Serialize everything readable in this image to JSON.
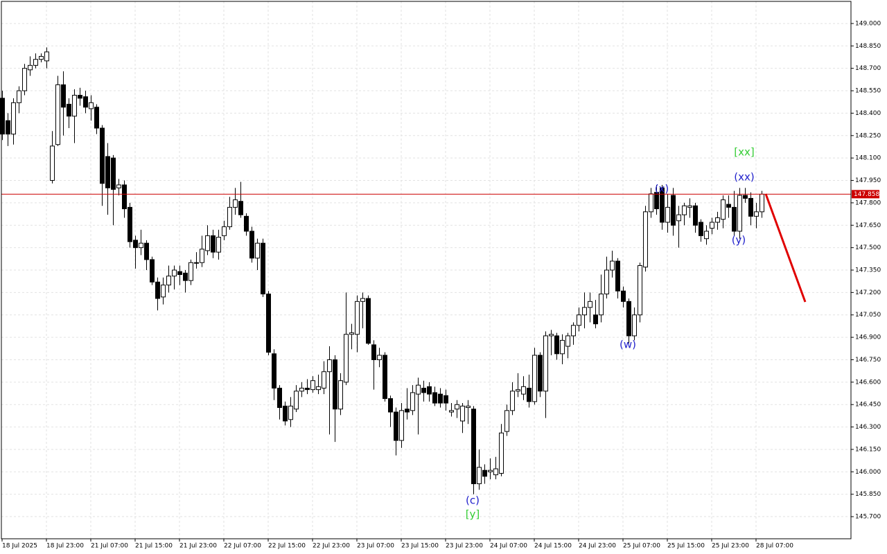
{
  "chart_data": {
    "type": "candlestick",
    "ylim": [
      145.552,
      149.148
    ],
    "yticks": [
      {
        "value": 149.0,
        "label": "149.000"
      },
      {
        "value": 148.85,
        "label": "148.850"
      },
      {
        "value": 148.7,
        "label": "148.700"
      },
      {
        "value": 148.55,
        "label": "148.550"
      },
      {
        "value": 148.4,
        "label": "148.400"
      },
      {
        "value": 148.25,
        "label": "148.250"
      },
      {
        "value": 148.1,
        "label": "148.100"
      },
      {
        "value": 147.95,
        "label": "147.950"
      },
      {
        "value": 147.8,
        "label": "147.800"
      },
      {
        "value": 147.65,
        "label": "147.650"
      },
      {
        "value": 147.5,
        "label": "147.500"
      },
      {
        "value": 147.35,
        "label": "147.350"
      },
      {
        "value": 147.2,
        "label": "147.200"
      },
      {
        "value": 147.05,
        "label": "147.050"
      },
      {
        "value": 146.9,
        "label": "146.900"
      },
      {
        "value": 146.75,
        "label": "146.750"
      },
      {
        "value": 146.6,
        "label": "146.600"
      },
      {
        "value": 146.45,
        "label": "146.450"
      },
      {
        "value": 146.3,
        "label": "146.300"
      },
      {
        "value": 146.15,
        "label": "146.150"
      },
      {
        "value": 146.0,
        "label": "146.000"
      },
      {
        "value": 145.85,
        "label": "145.850"
      },
      {
        "value": 145.7,
        "label": "145.700"
      }
    ],
    "grid": true,
    "up_color": "#ffffff",
    "down_color": "#000000",
    "wick_color": "#000000",
    "current_price": {
      "value": 147.858,
      "label": "147.858",
      "color": "#cc0000"
    },
    "categories": [
      "18 Jul 2025",
      null,
      null,
      null,
      null,
      null,
      null,
      null,
      "18 Jul 23:00",
      null,
      null,
      null,
      null,
      null,
      null,
      null,
      "21 Jul 07:00",
      null,
      null,
      null,
      null,
      null,
      null,
      null,
      "21 Jul 15:00",
      null,
      null,
      null,
      null,
      null,
      null,
      null,
      "21 Jul 23:00",
      null,
      null,
      null,
      null,
      null,
      null,
      null,
      "22 Jul 07:00",
      null,
      null,
      null,
      null,
      null,
      null,
      null,
      "22 Jul 15:00",
      null,
      null,
      null,
      null,
      null,
      null,
      null,
      "22 Jul 23:00",
      null,
      null,
      null,
      null,
      null,
      null,
      null,
      "23 Jul 07:00",
      null,
      null,
      null,
      null,
      null,
      null,
      null,
      "23 Jul 15:00",
      null,
      null,
      null,
      null,
      null,
      null,
      null,
      "23 Jul 23:00",
      null,
      null,
      null,
      null,
      null,
      null,
      null,
      "24 Jul 07:00",
      null,
      null,
      null,
      null,
      null,
      null,
      null,
      "24 Jul 15:00",
      null,
      null,
      null,
      null,
      null,
      null,
      null,
      "24 Jul 23:00",
      null,
      null,
      null,
      null,
      null,
      null,
      null,
      "25 Jul 07:00",
      null,
      null,
      null,
      null,
      null,
      null,
      null,
      "25 Jul 15:00",
      null,
      null,
      null,
      null,
      null,
      null,
      null,
      "25 Jul 23:00",
      null,
      null,
      null,
      null,
      null,
      null,
      null,
      "28 Jul 07:00",
      null
    ],
    "open": [
      148.5,
      148.35,
      148.26,
      148.47,
      148.55,
      148.69,
      148.72,
      148.76,
      148.75,
      147.95,
      148.19,
      148.59,
      148.46,
      148.38,
      148.52,
      148.51,
      148.43,
      148.44,
      148.3,
      148.11,
      148.1,
      147.9,
      147.92,
      147.77,
      147.55,
      147.5,
      147.53,
      147.42,
      147.27,
      147.17,
      147.25,
      147.31,
      147.34,
      147.33,
      147.28,
      147.4,
      147.4,
      147.48,
      147.58,
      147.47,
      147.58,
      147.64,
      147.77,
      147.81,
      147.71,
      147.61,
      147.43,
      147.53,
      147.19,
      146.79,
      146.56,
      146.44,
      146.35,
      146.42,
      146.54,
      146.56,
      146.55,
      146.55,
      146.56,
      146.67,
      146.75,
      146.42,
      146.6,
      146.92,
      146.92,
      147.14,
      147.16,
      146.85,
      146.75,
      146.78,
      146.49,
      146.4,
      146.21,
      146.42,
      146.41,
      146.52,
      146.56,
      146.57,
      146.53,
      146.52,
      146.51,
      146.4,
      146.42,
      146.34,
      146.43,
      146.42,
      145.92,
      146.01,
      146.0,
      145.98,
      145.99,
      146.27,
      146.41,
      146.54,
      146.52,
      146.56,
      146.47,
      146.78,
      146.54,
      146.91,
      146.91,
      146.79,
      146.84,
      146.91,
      146.98,
      147.05,
      147.1,
      147.05,
      147.05,
      147.19,
      147.35,
      147.41,
      147.21,
      147.14,
      146.91,
      147.05,
      147.37,
      147.74,
      147.87,
      147.9,
      147.67,
      147.85,
      147.68,
      147.72,
      147.77,
      147.78,
      147.67,
      147.56,
      147.63,
      147.67,
      147.69,
      147.79,
      147.77,
      147.61,
      147.85,
      147.83,
      147.71,
      147.74
    ],
    "high": [
      148.55,
      148.4,
      148.5,
      148.58,
      148.73,
      148.78,
      148.8,
      148.8,
      148.84,
      148.28,
      148.65,
      148.68,
      148.5,
      148.56,
      148.57,
      148.55,
      148.52,
      148.46,
      148.32,
      148.2,
      148.12,
      147.96,
      147.95,
      147.8,
      147.58,
      147.62,
      147.55,
      147.44,
      147.3,
      147.3,
      147.38,
      147.38,
      147.38,
      147.35,
      147.42,
      147.47,
      147.58,
      147.65,
      147.62,
      147.62,
      147.68,
      147.84,
      147.9,
      147.94,
      147.73,
      147.64,
      147.56,
      147.56,
      147.21,
      146.82,
      146.58,
      146.47,
      146.5,
      146.58,
      146.6,
      146.62,
      146.64,
      146.65,
      146.74,
      146.84,
      146.78,
      146.66,
      147.2,
      146.99,
      147.18,
      147.2,
      147.18,
      146.88,
      146.83,
      146.8,
      146.51,
      146.43,
      146.46,
      146.56,
      146.58,
      146.63,
      146.61,
      146.6,
      146.57,
      146.56,
      146.55,
      146.46,
      146.48,
      146.46,
      146.48,
      146.44,
      146.15,
      146.05,
      146.09,
      146.1,
      146.32,
      146.45,
      146.6,
      146.66,
      146.64,
      146.65,
      146.83,
      146.8,
      146.94,
      146.95,
      146.93,
      146.92,
      146.93,
      147.0,
      147.1,
      147.2,
      147.2,
      147.15,
      147.32,
      147.44,
      147.48,
      147.43,
      147.24,
      147.16,
      147.1,
      147.4,
      147.78,
      147.9,
      147.92,
      147.92,
      147.86,
      147.9,
      147.78,
      147.8,
      147.83,
      147.8,
      147.69,
      147.65,
      147.7,
      147.74,
      147.85,
      147.85,
      147.88,
      147.9,
      147.9,
      147.87,
      147.8,
      147.88
    ],
    "low": [
      148.22,
      148.18,
      148.19,
      148.4,
      148.52,
      148.65,
      148.7,
      148.74,
      148.7,
      147.93,
      148.18,
      148.25,
      148.3,
      148.2,
      148.45,
      148.4,
      148.35,
      148.26,
      147.78,
      147.72,
      147.65,
      147.85,
      147.7,
      147.5,
      147.36,
      147.45,
      147.35,
      147.25,
      147.08,
      147.12,
      147.2,
      147.22,
      147.25,
      147.2,
      147.25,
      147.36,
      147.37,
      147.45,
      147.43,
      147.42,
      147.55,
      147.62,
      147.72,
      147.7,
      147.58,
      147.4,
      147.35,
      147.17,
      146.78,
      146.48,
      146.35,
      146.31,
      146.3,
      146.4,
      146.5,
      146.52,
      146.53,
      146.52,
      146.52,
      146.25,
      146.2,
      146.38,
      146.58,
      146.82,
      146.8,
      146.96,
      146.85,
      146.55,
      146.7,
      146.47,
      146.3,
      146.11,
      146.16,
      146.35,
      146.38,
      146.25,
      146.47,
      146.47,
      146.44,
      146.43,
      146.41,
      146.37,
      146.36,
      146.26,
      146.32,
      145.85,
      145.88,
      145.92,
      145.95,
      145.95,
      145.97,
      146.24,
      146.38,
      146.5,
      146.48,
      146.43,
      146.45,
      146.5,
      146.36,
      146.78,
      146.75,
      146.72,
      146.76,
      146.85,
      146.94,
      146.96,
      147.0,
      146.96,
      147.0,
      147.16,
      147.3,
      147.16,
      147.1,
      146.86,
      146.88,
      147.0,
      147.34,
      147.7,
      147.72,
      147.62,
      147.6,
      147.58,
      147.5,
      147.65,
      147.7,
      147.6,
      147.54,
      147.52,
      147.59,
      147.62,
      147.63,
      147.7,
      147.58,
      147.56,
      147.8,
      147.65,
      147.63,
      147.7
    ],
    "close": [
      148.26,
      148.26,
      148.47,
      148.55,
      148.7,
      148.72,
      148.76,
      148.78,
      148.81,
      148.18,
      148.59,
      148.44,
      148.38,
      148.52,
      148.5,
      148.44,
      148.47,
      148.3,
      147.93,
      147.9,
      147.89,
      147.92,
      147.76,
      147.54,
      147.5,
      147.53,
      147.42,
      147.27,
      147.16,
      147.25,
      147.31,
      147.35,
      147.32,
      147.28,
      147.4,
      147.4,
      147.49,
      147.58,
      147.47,
      147.57,
      147.64,
      147.77,
      147.82,
      147.72,
      147.61,
      147.43,
      147.53,
      147.19,
      146.8,
      146.56,
      146.43,
      146.34,
      146.44,
      146.54,
      146.56,
      146.55,
      146.61,
      146.57,
      146.67,
      146.75,
      146.42,
      146.61,
      146.92,
      146.93,
      147.14,
      147.16,
      146.86,
      146.75,
      146.78,
      146.49,
      146.4,
      146.21,
      146.41,
      146.4,
      146.53,
      146.58,
      146.53,
      146.52,
      146.46,
      146.46,
      146.46,
      146.41,
      146.45,
      146.44,
      146.44,
      145.92,
      146.03,
      145.97,
      146.01,
      146.02,
      146.26,
      146.41,
      146.54,
      146.55,
      146.57,
      146.47,
      146.78,
      146.54,
      146.91,
      146.92,
      146.79,
      146.88,
      146.91,
      146.98,
      147.05,
      147.1,
      147.14,
      146.99,
      147.19,
      147.35,
      147.41,
      147.21,
      147.14,
      146.91,
      147.05,
      147.38,
      147.74,
      147.86,
      147.76,
      147.67,
      147.77,
      147.65,
      147.72,
      147.78,
      147.78,
      147.65,
      147.58,
      147.61,
      147.67,
      147.7,
      147.82,
      147.77,
      147.61,
      147.85,
      147.83,
      147.71,
      147.74,
      147.858
    ],
    "annotations": [
      {
        "text": "[xx]",
        "color": "#33cc33"
      },
      {
        "text": "(xx)",
        "color": "#2222cc"
      },
      {
        "text": "(x)",
        "color": "#2222cc"
      },
      {
        "text": "(y)",
        "color": "#2222cc"
      },
      {
        "text": "(w)",
        "color": "#2222cc"
      },
      {
        "text": "(c)",
        "color": "#2222cc"
      },
      {
        "text": "[y]",
        "color": "#33cc33"
      }
    ]
  }
}
